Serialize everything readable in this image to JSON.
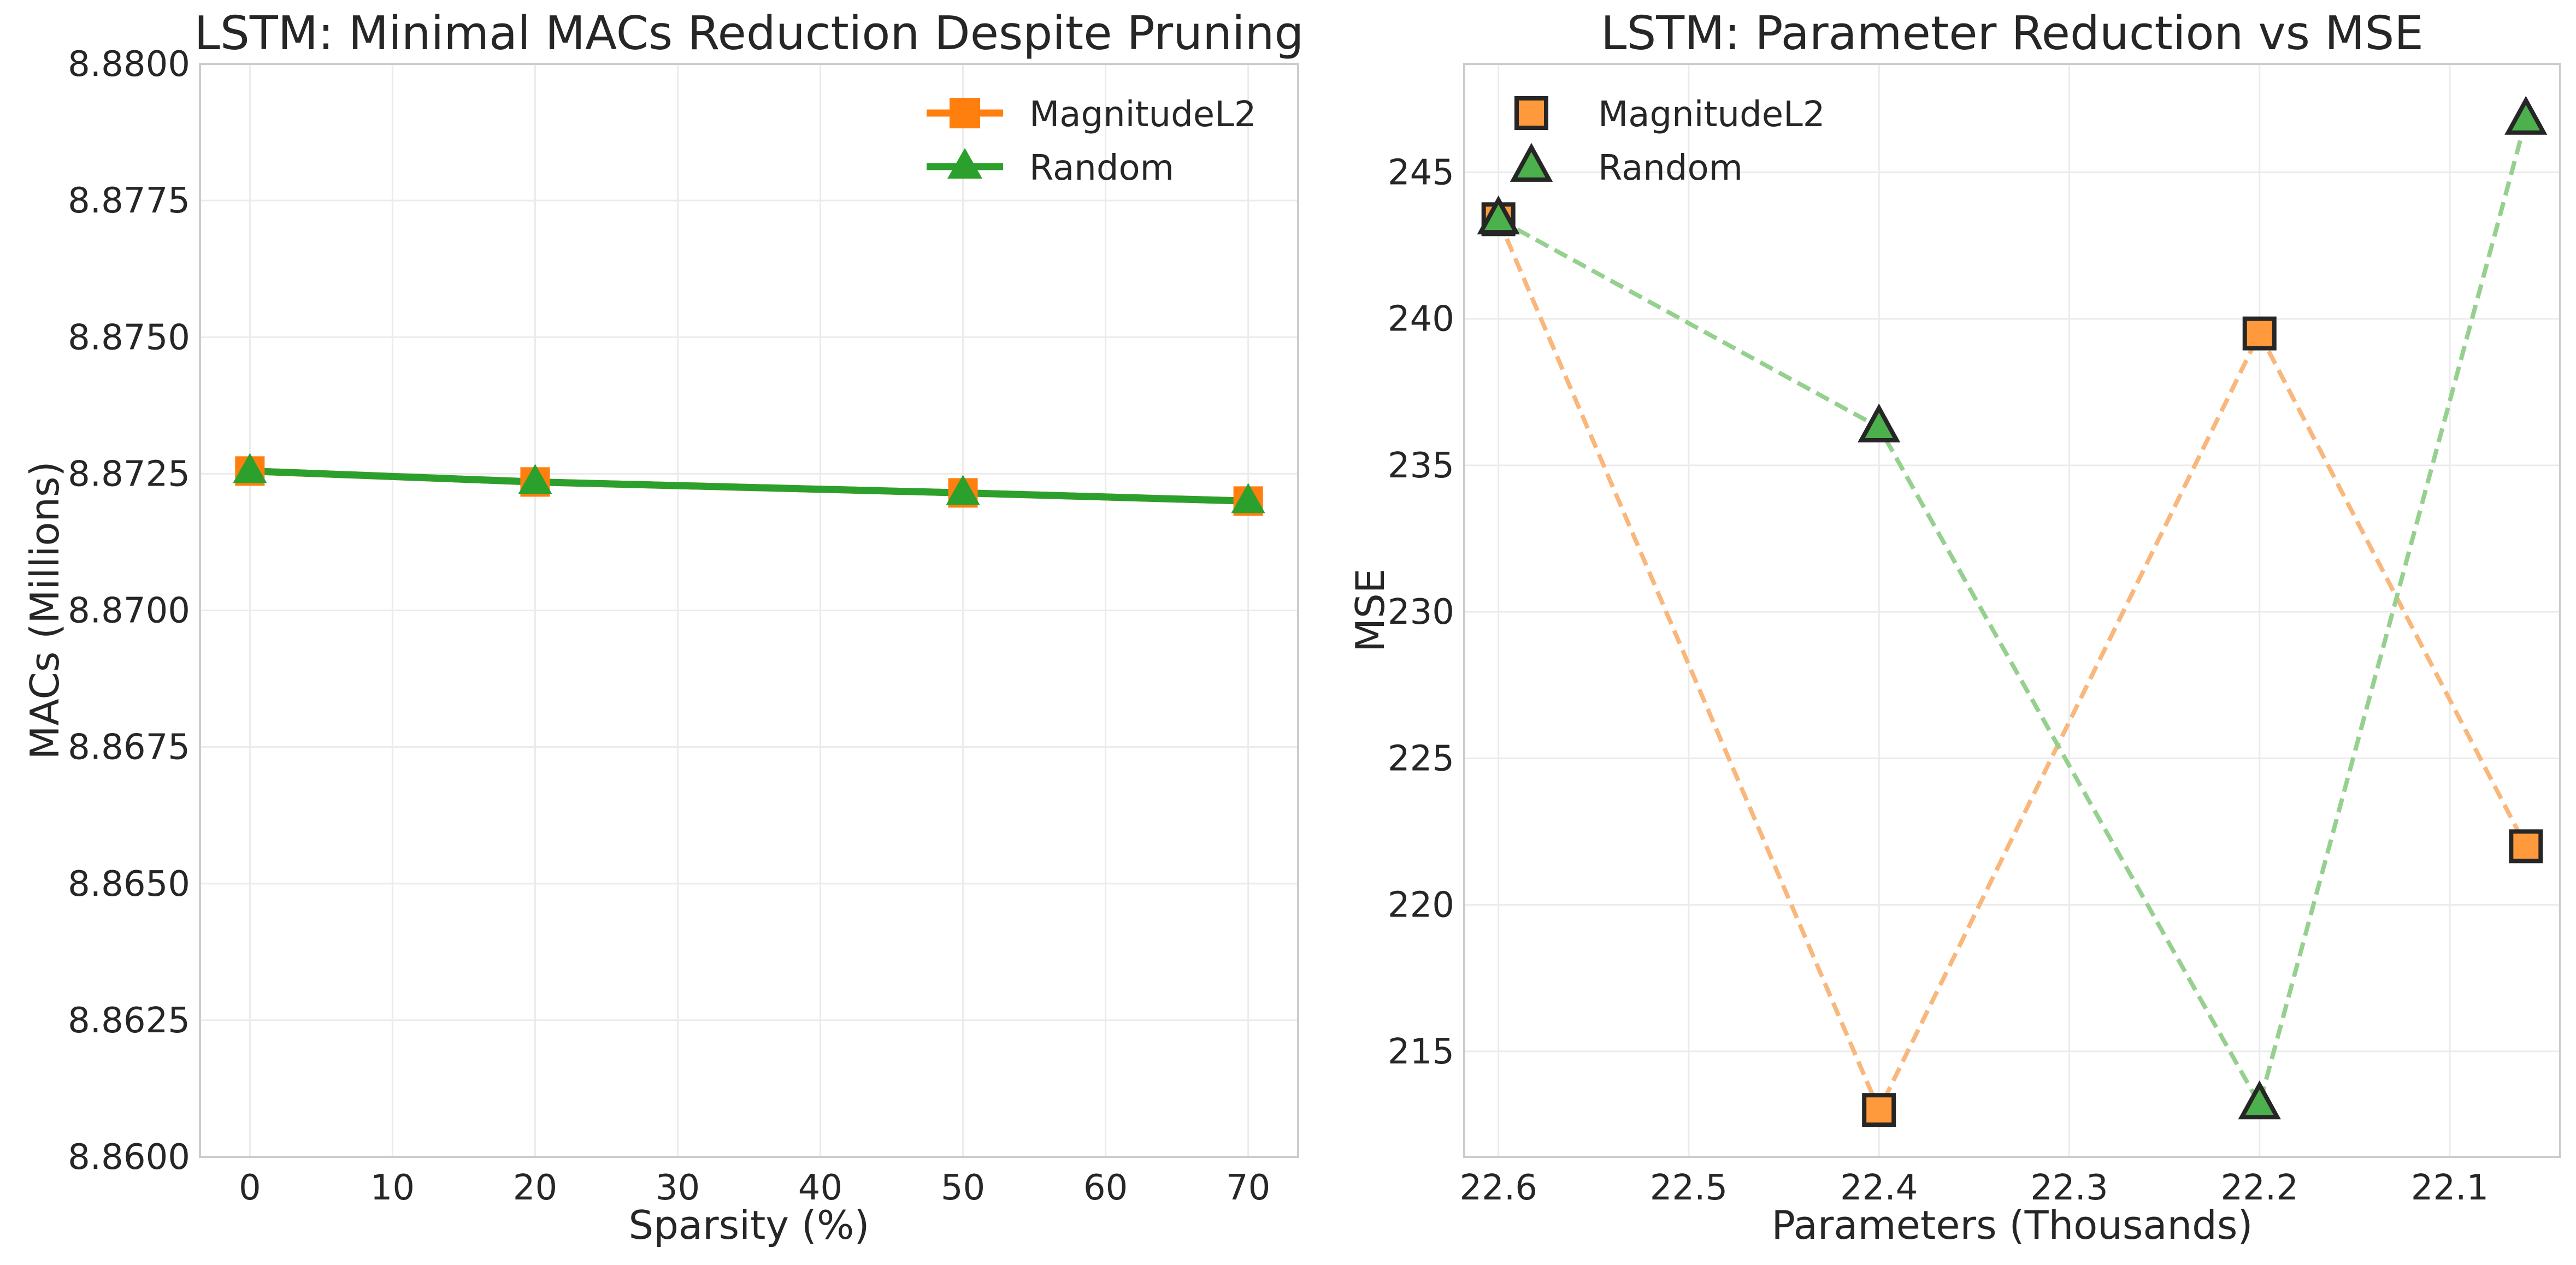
{
  "chart_data": [
    {
      "type": "line",
      "title": "LSTM: Minimal MACs Reduction Despite Pruning",
      "xlabel": "Sparsity (%)",
      "ylabel": "MACs (Millions)",
      "xlim": [
        -3.5,
        73.5
      ],
      "ylim": [
        8.86,
        8.88
      ],
      "xticks": [
        0,
        10,
        20,
        30,
        40,
        50,
        60,
        70
      ],
      "yticks": [
        8.86,
        8.8625,
        8.865,
        8.8675,
        8.87,
        8.8725,
        8.875,
        8.8775,
        8.88
      ],
      "ytick_labels": [
        "8.8600",
        "8.8625",
        "8.8650",
        "8.8675",
        "8.8700",
        "8.8725",
        "8.8750",
        "8.8775",
        "8.8800"
      ],
      "grid": true,
      "legend_position": "top-right",
      "x": [
        0,
        20,
        50,
        70
      ],
      "series": [
        {
          "name": "MagnitudeL2",
          "values": [
            8.87255,
            8.87235,
            8.87215,
            8.872
          ],
          "color": "#ff7f0e",
          "marker": "square"
        },
        {
          "name": "Random",
          "values": [
            8.87255,
            8.87235,
            8.87215,
            8.872
          ],
          "color": "#2ca02c",
          "marker": "triangle"
        }
      ]
    },
    {
      "type": "scatter",
      "title": "LSTM: Parameter Reduction vs MSE",
      "xlabel": "Parameters (Thousands)",
      "ylabel": "MSE",
      "x_inverted": true,
      "xlim": [
        22.618,
        22.042
      ],
      "ylim": [
        211.4,
        248.7
      ],
      "xticks": [
        22.6,
        22.5,
        22.4,
        22.3,
        22.2,
        22.1
      ],
      "xtick_labels": [
        "22.6",
        "22.5",
        "22.4",
        "22.3",
        "22.2",
        "22.1"
      ],
      "yticks": [
        215,
        220,
        225,
        230,
        235,
        240,
        245
      ],
      "grid": true,
      "legend_position": "top-left",
      "series": [
        {
          "name": "MagnitudeL2",
          "color": "#ff7f0e",
          "marker": "square",
          "x": [
            22.6,
            22.4,
            22.2,
            22.06
          ],
          "y": [
            243.4,
            213.0,
            239.5,
            222.0
          ]
        },
        {
          "name": "Random",
          "color": "#2ca02c",
          "marker": "triangle",
          "x": [
            22.6,
            22.4,
            22.2,
            22.06
          ],
          "y": [
            243.4,
            236.3,
            213.2,
            246.8
          ]
        }
      ]
    }
  ]
}
